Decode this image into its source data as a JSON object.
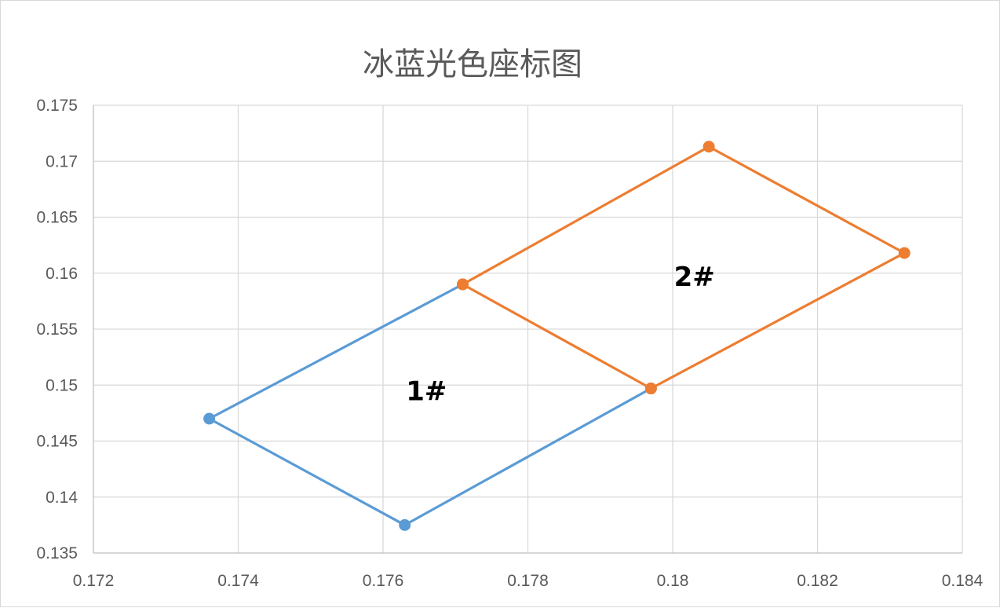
{
  "chart_data": {
    "type": "scatter",
    "title": "冰蓝光色座标图",
    "xlabel": "",
    "ylabel": "",
    "xlim": [
      0.172,
      0.184
    ],
    "ylim": [
      0.135,
      0.175
    ],
    "x_ticks": [
      "0.172",
      "0.174",
      "0.176",
      "0.178",
      "0.18",
      "0.182",
      "0.184"
    ],
    "y_ticks": [
      "0.135",
      "0.14",
      "0.145",
      "0.15",
      "0.155",
      "0.16",
      "0.165",
      "0.17",
      "0.175"
    ],
    "grid": true,
    "series": [
      {
        "color": "#5b9bd5",
        "points": [
          [
            0.1771,
            0.159
          ],
          [
            0.1736,
            0.147
          ],
          [
            0.1763,
            0.1375
          ],
          [
            0.1797,
            0.1497
          ]
        ]
      },
      {
        "color": "#ed7d31",
        "points": [
          [
            0.1771,
            0.159
          ],
          [
            0.1797,
            0.1497
          ],
          [
            0.1832,
            0.1618
          ],
          [
            0.1805,
            0.1713
          ],
          [
            0.1771,
            0.159
          ]
        ]
      }
    ],
    "annotations": [
      {
        "text": "1#",
        "x": 0.1766,
        "y": 0.1495
      },
      {
        "text": "2#",
        "x": 0.1803,
        "y": 0.1597
      }
    ]
  }
}
